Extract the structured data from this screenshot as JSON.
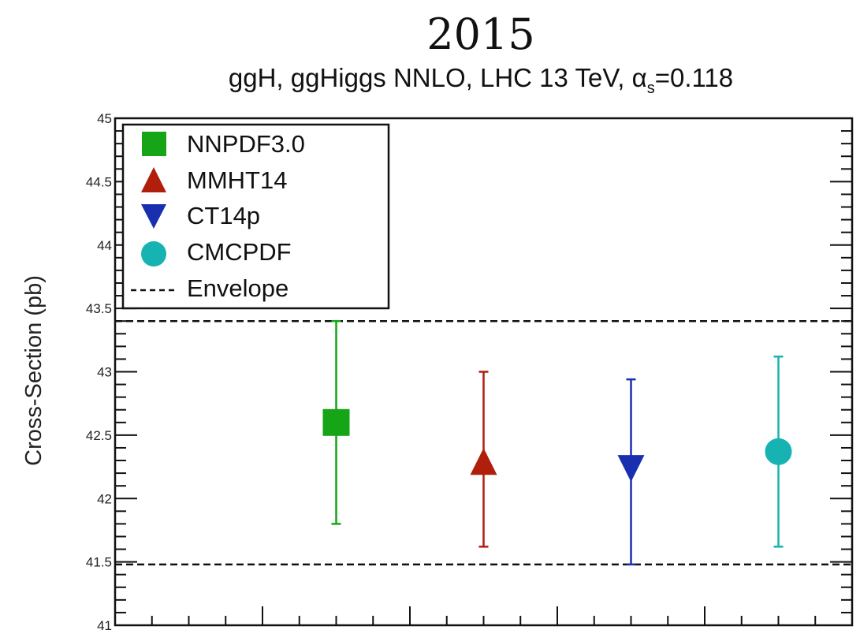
{
  "colors": {
    "NNPDF3.0": "#16a516",
    "MMHT14": "#b01e0c",
    "CT14p": "#1a2fb0",
    "CMCPDF": "#17b2b2",
    "axis": "#111111"
  },
  "chart_data": {
    "type": "scatter",
    "title": "2015",
    "subtitle_prefix": "ggH, ggHiggs NNLO, LHC 13 TeV, α",
    "subtitle_sub": "s",
    "subtitle_suffix": "=0.118",
    "ylabel": "Cross-Section (pb)",
    "xlabel": "",
    "ylim": [
      41,
      45
    ],
    "yticks": [
      "41",
      "41.5",
      "42",
      "42.5",
      "43",
      "43.5",
      "44",
      "44.5",
      "45"
    ],
    "grid": false,
    "legend_position": "top-left",
    "series": [
      {
        "name": "NNPDF3.0",
        "marker": "square",
        "x": 3,
        "y": 42.6,
        "ylow": 41.8,
        "yhigh": 43.4
      },
      {
        "name": "MMHT14",
        "marker": "triangle-up",
        "x": 5,
        "y": 42.28,
        "ylow": 41.62,
        "yhigh": 43.0
      },
      {
        "name": "CT14p",
        "marker": "triangle-down",
        "x": 7,
        "y": 42.25,
        "ylow": 41.48,
        "yhigh": 42.94
      },
      {
        "name": "CMCPDF",
        "marker": "circle",
        "x": 9,
        "y": 42.37,
        "ylow": 41.62,
        "yhigh": 43.12
      }
    ],
    "envelope": {
      "name": "Envelope",
      "low": 41.48,
      "high": 43.4
    }
  }
}
